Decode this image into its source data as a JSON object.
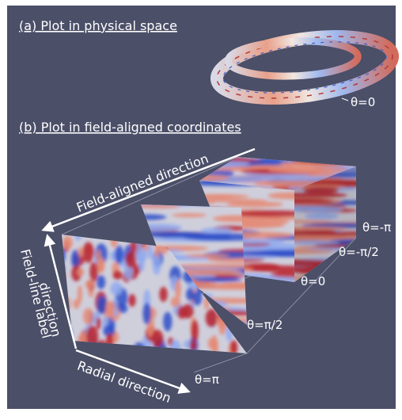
{
  "panel_a": {
    "title": "(a) Plot in physical space",
    "theta_label": "θ=0"
  },
  "panel_b": {
    "title": "(b) Plot in field-aligned coordinates",
    "axes": {
      "field_aligned": "Field-aligned direction",
      "field_line_label": [
        "Field-line label",
        "direction"
      ],
      "radial": "Radial direction"
    },
    "theta_labels": [
      "θ=-π",
      "θ=-π/2",
      "θ=0",
      "θ=π/2",
      "θ=π"
    ]
  }
}
